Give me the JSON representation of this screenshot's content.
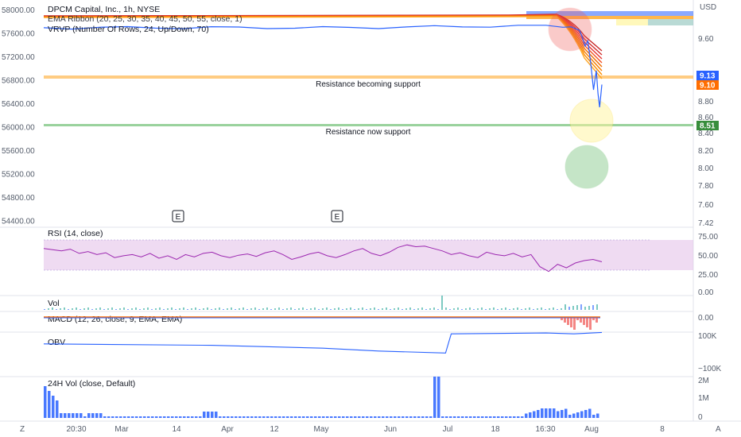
{
  "header": {
    "symbol": "DPCM Capital, Inc., 1h, NYSE",
    "ema_ribbon": "EMA Ribbon (20, 25, 30, 35, 40, 45, 50, 55, close, 1)",
    "vrvp": "VRVP (Number Of Rows, 24, Up/Down, 70)"
  },
  "currency": "USD",
  "left_axis_ticks": [
    "58000.00",
    "57600.00",
    "57200.00",
    "56800.00",
    "56400.00",
    "56000.00",
    "55600.00",
    "55200.00",
    "54800.00",
    "54400.00"
  ],
  "right_axis_ticks": [
    "9.60",
    "9.20",
    "8.80",
    "8.60",
    "8.40",
    "8.20",
    "8.00",
    "7.80",
    "7.60",
    "7.42"
  ],
  "price_tags": {
    "last": "9.13",
    "ema": "9.10",
    "support": "8.51"
  },
  "colors": {
    "price": "#2962ff",
    "resistance": "#ffb74d",
    "support": "#81c784",
    "rsi": "#9c27b0",
    "ema_fast": "#f57c00",
    "ema_slow": "#d32f2f",
    "obv": "#2962ff",
    "vol": "#2962ff"
  },
  "annotations": {
    "resistance": "Resistance becoming support",
    "support": "Resistance now support"
  },
  "earnings_marker": "E",
  "rsi": {
    "title": "RSI (14, close)",
    "ticks": [
      "75.00",
      "50.00",
      "25.00",
      "0.00"
    ]
  },
  "vol": {
    "title": "Vol"
  },
  "macd": {
    "title": "MACD (12, 26, close, 9, EMA, EMA)",
    "ticks": [
      "0.00"
    ]
  },
  "obv": {
    "title": "OBV",
    "ticks": [
      "100K",
      "−100K"
    ]
  },
  "vol24": {
    "title": "24H Vol (close, Default)",
    "ticks": [
      "2M",
      "1M",
      "0"
    ]
  },
  "time_axis": [
    "20:30",
    "Mar",
    "14",
    "Apr",
    "12",
    "May",
    "Jun",
    "Jul",
    "18",
    "16:30",
    "Aug",
    "8"
  ],
  "corner_left": "Z",
  "corner_right": "A",
  "chart_data": {
    "type": "line",
    "price_series": [
      [
        0,
        0.905
      ],
      [
        0.05,
        0.904
      ],
      [
        0.1,
        0.906
      ],
      [
        0.15,
        0.905
      ],
      [
        0.2,
        0.906
      ],
      [
        0.25,
        0.905
      ],
      [
        0.3,
        0.906
      ],
      [
        0.35,
        0.905
      ],
      [
        0.4,
        0.906
      ],
      [
        0.45,
        0.905
      ],
      [
        0.5,
        0.905
      ],
      [
        0.55,
        0.906
      ],
      [
        0.6,
        0.907
      ],
      [
        0.65,
        0.909
      ],
      [
        0.7,
        0.91
      ],
      [
        0.75,
        0.912
      ],
      [
        0.8,
        0.914
      ],
      [
        0.85,
        0.915
      ],
      [
        0.9,
        0.914
      ],
      [
        0.93,
        0.913
      ],
      [
        0.945,
        0.91
      ],
      [
        0.96,
        0.89
      ],
      [
        0.965,
        0.85
      ],
      [
        0.97,
        0.8
      ],
      [
        0.975,
        0.83
      ],
      [
        0.98,
        0.7
      ],
      [
        0.985,
        0.55
      ],
      [
        0.99,
        0.66
      ],
      [
        0.993,
        0.53
      ],
      [
        0.996,
        0.45
      ],
      [
        1.0,
        0.58
      ]
    ],
    "rsi_values": [
      70,
      68,
      66,
      69,
      62,
      65,
      60,
      63,
      55,
      58,
      60,
      56,
      62,
      54,
      58,
      52,
      60,
      56,
      62,
      64,
      58,
      55,
      59,
      61,
      57,
      63,
      66,
      60,
      52,
      56,
      61,
      64,
      58,
      55,
      60,
      66,
      70,
      62,
      58,
      64,
      72,
      76,
      73,
      74,
      70,
      66,
      60,
      63,
      58,
      55,
      64,
      60,
      58,
      62,
      56,
      60,
      40,
      32,
      44,
      38,
      46,
      50,
      52,
      48
    ],
    "rsi_range": [
      0,
      100
    ],
    "rsi_band": [
      30,
      70
    ],
    "obv_levels": [
      [
        0,
        0.2
      ],
      [
        0.3,
        0.15
      ],
      [
        0.5,
        0.05
      ],
      [
        0.6,
        -0.05
      ],
      [
        0.72,
        -0.12
      ],
      [
        0.73,
        0.55
      ],
      [
        0.9,
        0.58
      ],
      [
        0.95,
        0.55
      ],
      [
        1.0,
        0.6
      ]
    ]
  }
}
